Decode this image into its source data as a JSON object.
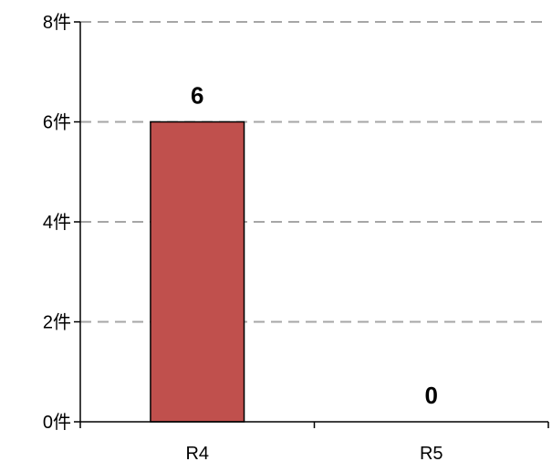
{
  "chart_data": {
    "type": "bar",
    "categories": [
      "R4",
      "R5"
    ],
    "values": [
      6,
      0
    ],
    "value_labels": [
      "6",
      "0"
    ],
    "ylim": [
      0,
      8
    ],
    "yticks": [
      0,
      2,
      4,
      6,
      8
    ],
    "ytick_labels": [
      "0件",
      "2件",
      "4件",
      "6件",
      "8件"
    ],
    "grid": true,
    "grid_style": "dashed",
    "bar_color": "#c0504d",
    "bar_edge_color": "#000000",
    "grid_color": "#a6a6a6"
  }
}
